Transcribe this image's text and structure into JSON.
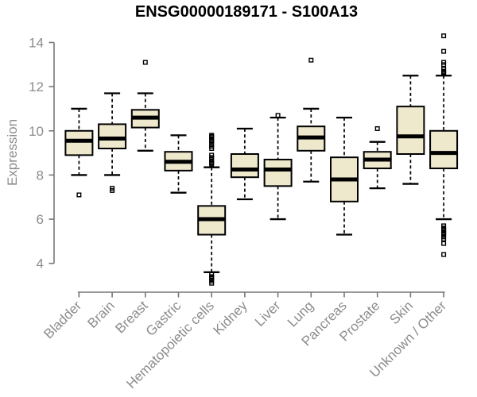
{
  "chart_data": {
    "type": "boxplot",
    "title": "ENSG00000189171 - S100A13",
    "ylabel": "Expression",
    "xlabel": "",
    "ylim": [
      4,
      14
    ],
    "yticks": [
      14,
      12,
      10,
      8,
      6,
      4
    ],
    "grid": false,
    "legend": false,
    "categories": [
      "Bladder",
      "Brain",
      "Breast",
      "Gastric",
      "Hematopoietic cells",
      "Kidney",
      "Liver",
      "Lung",
      "Pancreas",
      "Prostate",
      "Skin",
      "Unknown / Other"
    ],
    "boxes": [
      {
        "category": "Bladder",
        "whisker_low": 8.0,
        "q1": 8.9,
        "median": 9.55,
        "q3": 10.0,
        "whisker_high": 11.0,
        "outliers": [
          7.1
        ]
      },
      {
        "category": "Brain",
        "whisker_low": 8.0,
        "q1": 9.2,
        "median": 9.65,
        "q3": 10.3,
        "whisker_high": 11.7,
        "outliers": [
          7.3,
          7.4
        ]
      },
      {
        "category": "Breast",
        "whisker_low": 9.1,
        "q1": 10.15,
        "median": 10.6,
        "q3": 10.95,
        "whisker_high": 11.7,
        "outliers": [
          13.1
        ]
      },
      {
        "category": "Gastric",
        "whisker_low": 7.2,
        "q1": 8.2,
        "median": 8.6,
        "q3": 9.05,
        "whisker_high": 9.8,
        "outliers": []
      },
      {
        "category": "Hematopoietic cells",
        "whisker_low": 3.6,
        "q1": 5.3,
        "median": 6.0,
        "q3": 6.6,
        "whisker_high": 8.35,
        "outliers": [
          8.5,
          8.55,
          8.6,
          8.7,
          8.8,
          8.9,
          9.2,
          9.3,
          9.4,
          9.5,
          9.55,
          9.6,
          9.7,
          9.75,
          9.8,
          3.5,
          3.4,
          3.35,
          3.3,
          3.2,
          3.1
        ]
      },
      {
        "category": "Kidney",
        "whisker_low": 6.9,
        "q1": 7.9,
        "median": 8.25,
        "q3": 8.95,
        "whisker_high": 10.1,
        "outliers": []
      },
      {
        "category": "Liver",
        "whisker_low": 6.0,
        "q1": 7.5,
        "median": 8.25,
        "q3": 8.7,
        "whisker_high": 10.6,
        "outliers": [
          10.7
        ]
      },
      {
        "category": "Lung",
        "whisker_low": 7.7,
        "q1": 9.1,
        "median": 9.7,
        "q3": 10.2,
        "whisker_high": 11.0,
        "outliers": [
          13.2
        ]
      },
      {
        "category": "Pancreas",
        "whisker_low": 5.3,
        "q1": 6.8,
        "median": 7.8,
        "q3": 8.8,
        "whisker_high": 10.6,
        "outliers": []
      },
      {
        "category": "Prostate",
        "whisker_low": 7.4,
        "q1": 8.3,
        "median": 8.7,
        "q3": 9.05,
        "whisker_high": 9.5,
        "outliers": [
          10.1
        ]
      },
      {
        "category": "Skin",
        "whisker_low": 7.6,
        "q1": 8.95,
        "median": 9.75,
        "q3": 11.1,
        "whisker_high": 12.5,
        "outliers": []
      },
      {
        "category": "Unknown / Other",
        "whisker_low": 6.0,
        "q1": 8.3,
        "median": 9.0,
        "q3": 10.0,
        "whisker_high": 12.5,
        "outliers": [
          12.6,
          12.65,
          12.7,
          12.8,
          13.0,
          13.1,
          13.6,
          14.3,
          5.7,
          5.6,
          5.55,
          5.5,
          5.4,
          5.35,
          5.3,
          5.2,
          5.1,
          4.9,
          4.4
        ]
      }
    ],
    "colors": {
      "box_fill": "#EEE8CD",
      "box_stroke": "#000000",
      "median_stroke": "#000000",
      "whisker_stroke": "#000000",
      "axis_line": "#777777",
      "axis_text": "#8C8C8C",
      "title_text": "#000000",
      "background": "#FFFFFF"
    }
  }
}
